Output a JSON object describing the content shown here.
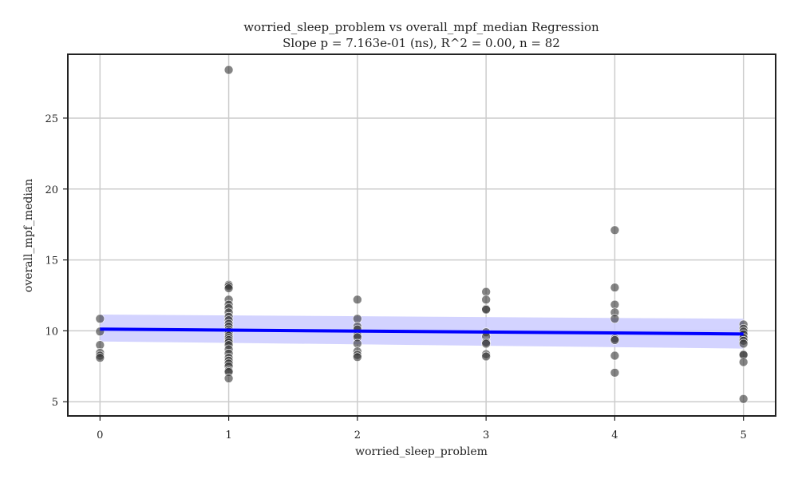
{
  "chart_data": {
    "type": "scatter",
    "title": "worried_sleep_problem vs overall_mpf_median Regression",
    "subtitle": "Slope p = 7.163e-01 (ns), R^2 = 0.00, n = 82",
    "xlabel": "worried_sleep_problem",
    "ylabel": "overall_mpf_median",
    "xlim": [
      -0.25,
      5.25
    ],
    "ylim": [
      4.0,
      29.5
    ],
    "xticks": [
      "0",
      "1",
      "2",
      "3",
      "4",
      "5"
    ],
    "yticks": [
      "5",
      "10",
      "15",
      "20",
      "25"
    ],
    "grid": true,
    "legend": "none",
    "colors": {
      "points": "#333333",
      "regression_line": "#0000ff",
      "confidence_band": "#c8c8ff",
      "grid": "#cccccc",
      "frame": "#222222"
    },
    "points": [
      {
        "x": 0,
        "y": 10.85
      },
      {
        "x": 0,
        "y": 9.95
      },
      {
        "x": 0,
        "y": 9.0
      },
      {
        "x": 0,
        "y": 8.45
      },
      {
        "x": 0,
        "y": 8.25
      },
      {
        "x": 0,
        "y": 8.1
      },
      {
        "x": 1,
        "y": 28.4
      },
      {
        "x": 1,
        "y": 13.25
      },
      {
        "x": 1,
        "y": 13.15
      },
      {
        "x": 1,
        "y": 13.0
      },
      {
        "x": 1,
        "y": 12.2
      },
      {
        "x": 1,
        "y": 11.85
      },
      {
        "x": 1,
        "y": 11.6
      },
      {
        "x": 1,
        "y": 11.3
      },
      {
        "x": 1,
        "y": 11.0
      },
      {
        "x": 1,
        "y": 10.75
      },
      {
        "x": 1,
        "y": 10.5
      },
      {
        "x": 1,
        "y": 10.3
      },
      {
        "x": 1,
        "y": 10.1
      },
      {
        "x": 1,
        "y": 9.95
      },
      {
        "x": 1,
        "y": 9.8
      },
      {
        "x": 1,
        "y": 9.65
      },
      {
        "x": 1,
        "y": 9.5
      },
      {
        "x": 1,
        "y": 9.35
      },
      {
        "x": 1,
        "y": 9.2
      },
      {
        "x": 1,
        "y": 9.0
      },
      {
        "x": 1,
        "y": 8.7
      },
      {
        "x": 1,
        "y": 8.4
      },
      {
        "x": 1,
        "y": 8.1
      },
      {
        "x": 1,
        "y": 7.9
      },
      {
        "x": 1,
        "y": 7.7
      },
      {
        "x": 1,
        "y": 7.5
      },
      {
        "x": 1,
        "y": 7.2
      },
      {
        "x": 1,
        "y": 7.1
      },
      {
        "x": 1,
        "y": 6.65
      },
      {
        "x": 2,
        "y": 12.2
      },
      {
        "x": 2,
        "y": 10.85
      },
      {
        "x": 2,
        "y": 10.3
      },
      {
        "x": 2,
        "y": 10.1
      },
      {
        "x": 2,
        "y": 9.7
      },
      {
        "x": 2,
        "y": 9.55
      },
      {
        "x": 2,
        "y": 9.1
      },
      {
        "x": 2,
        "y": 8.55
      },
      {
        "x": 2,
        "y": 8.3
      },
      {
        "x": 2,
        "y": 8.15
      },
      {
        "x": 3,
        "y": 12.75
      },
      {
        "x": 3,
        "y": 12.2
      },
      {
        "x": 3,
        "y": 11.55
      },
      {
        "x": 3,
        "y": 11.5
      },
      {
        "x": 3,
        "y": 9.9
      },
      {
        "x": 3,
        "y": 9.6
      },
      {
        "x": 3,
        "y": 9.2
      },
      {
        "x": 3,
        "y": 9.1
      },
      {
        "x": 3,
        "y": 8.35
      },
      {
        "x": 3,
        "y": 8.2
      },
      {
        "x": 4,
        "y": 17.1
      },
      {
        "x": 4,
        "y": 13.05
      },
      {
        "x": 4,
        "y": 11.85
      },
      {
        "x": 4,
        "y": 11.3
      },
      {
        "x": 4,
        "y": 10.85
      },
      {
        "x": 4,
        "y": 9.45
      },
      {
        "x": 4,
        "y": 9.35
      },
      {
        "x": 4,
        "y": 8.25
      },
      {
        "x": 4,
        "y": 7.05
      },
      {
        "x": 5,
        "y": 10.45
      },
      {
        "x": 5,
        "y": 10.15
      },
      {
        "x": 5,
        "y": 9.95
      },
      {
        "x": 5,
        "y": 9.75
      },
      {
        "x": 5,
        "y": 9.5
      },
      {
        "x": 5,
        "y": 9.3
      },
      {
        "x": 5,
        "y": 9.1
      },
      {
        "x": 5,
        "y": 8.35
      },
      {
        "x": 5,
        "y": 8.3
      },
      {
        "x": 5,
        "y": 7.8
      },
      {
        "x": 5,
        "y": 5.2
      }
    ],
    "regression": {
      "x": [
        0,
        5
      ],
      "y": [
        10.12,
        9.78
      ],
      "ci_upper": [
        11.15,
        10.85
      ],
      "ci_lower": [
        9.25,
        8.75
      ]
    }
  }
}
